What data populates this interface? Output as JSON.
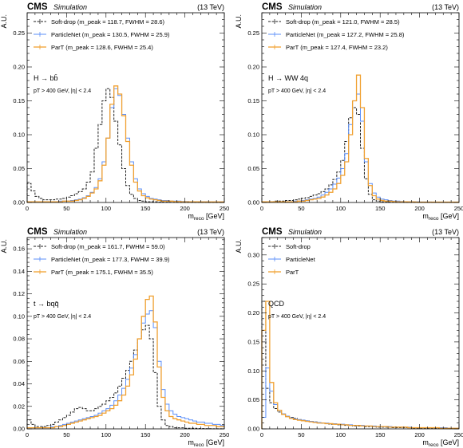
{
  "figure": {
    "experiment": "CMS",
    "simulation_label": "Simulation",
    "energy_label": "(13 TeV)",
    "y_axis_label": "A.U.",
    "x_axis_label": "m",
    "x_axis_label_sub": "reco",
    "x_axis_unit": "[GeV]",
    "colors": {
      "softdrop": "#222222",
      "particlenet": "#5b8ff9",
      "part": "#f0a030"
    }
  },
  "chart_data": [
    {
      "type": "line",
      "process_label": "H → bb̄",
      "cuts_label": "pT > 400 GeV, |η| < 2.4",
      "xlim": [
        0,
        250
      ],
      "ylim": [
        0,
        0.28
      ],
      "yticks": [
        0,
        0.05,
        0.1,
        0.15,
        0.2,
        0.25
      ],
      "yticklabels": [
        "0.00",
        "0.05",
        "0.10",
        "0.15",
        "0.20",
        "0.25"
      ],
      "xticks": [
        0,
        50,
        100,
        150,
        200,
        250
      ],
      "xticklabels": [
        "0",
        "50",
        "100",
        "150",
        "200",
        "250"
      ],
      "bin_width": 5,
      "series": [
        {
          "name": "Soft-drop",
          "legend_extra": "(m_peak = 118.7, FWHM = 28.6)",
          "values": [
            0.028,
            0.017,
            0.009,
            0.006,
            0.004,
            0.004,
            0.004,
            0.005,
            0.005,
            0.006,
            0.008,
            0.01,
            0.013,
            0.016,
            0.02,
            0.03,
            0.045,
            0.08,
            0.115,
            0.15,
            0.168,
            0.155,
            0.12,
            0.085,
            0.05,
            0.025,
            0.012,
            0.006,
            0.003,
            0.002,
            0.001,
            0.001,
            0.001,
            0.0005,
            0.0005,
            0.0005,
            0.0003,
            0.0003,
            0.0002,
            0.0002,
            0.0002,
            0.0001,
            0.0001,
            0.0001,
            0.0001,
            0.0001,
            0,
            0,
            0,
            0
          ]
        },
        {
          "name": "ParticleNet",
          "legend_extra": "(m_peak = 130.5, FWHM = 25.9)",
          "values": [
            0.001,
            0.001,
            0.001,
            0.001,
            0.001,
            0.001,
            0.001,
            0.001,
            0.002,
            0.002,
            0.002,
            0.003,
            0.004,
            0.005,
            0.007,
            0.01,
            0.015,
            0.022,
            0.035,
            0.06,
            0.095,
            0.14,
            0.168,
            0.158,
            0.13,
            0.095,
            0.06,
            0.035,
            0.02,
            0.013,
            0.009,
            0.006,
            0.005,
            0.004,
            0.003,
            0.003,
            0.002,
            0.002,
            0.002,
            0.0015,
            0.0015,
            0.001,
            0.001,
            0.001,
            0.001,
            0.001,
            0.0008,
            0.0008,
            0.0008,
            0.0008
          ]
        },
        {
          "name": "ParT",
          "legend_extra": "(m_peak = 128.6, FWHM = 25.4)",
          "values": [
            0.001,
            0.001,
            0.001,
            0.001,
            0.001,
            0.001,
            0.001,
            0.001,
            0.001,
            0.002,
            0.002,
            0.002,
            0.003,
            0.004,
            0.006,
            0.009,
            0.014,
            0.02,
            0.032,
            0.055,
            0.095,
            0.145,
            0.172,
            0.16,
            0.128,
            0.09,
            0.055,
            0.03,
            0.017,
            0.01,
            0.007,
            0.005,
            0.004,
            0.003,
            0.002,
            0.002,
            0.002,
            0.0015,
            0.0015,
            0.001,
            0.001,
            0.001,
            0.001,
            0.001,
            0.0008,
            0.0008,
            0.0008,
            0.0008,
            0.0008,
            0.0008
          ]
        }
      ]
    },
    {
      "type": "line",
      "process_label": "H → WW 4q",
      "cuts_label": "pT > 400 GeV, |η| < 2.4",
      "xlim": [
        0,
        250
      ],
      "ylim": [
        0,
        0.28
      ],
      "yticks": [
        0,
        0.05,
        0.1,
        0.15,
        0.2,
        0.25
      ],
      "yticklabels": [
        "0.00",
        "0.05",
        "0.10",
        "0.15",
        "0.20",
        "0.25"
      ],
      "xticks": [
        0,
        50,
        100,
        150,
        200,
        250
      ],
      "xticklabels": [
        "0",
        "50",
        "100",
        "150",
        "200",
        "250"
      ],
      "bin_width": 5,
      "series": [
        {
          "name": "Soft-drop",
          "legend_extra": "(m_peak = 121.0, FWHM = 28.5)",
          "values": [
            0.001,
            0.001,
            0.001,
            0.002,
            0.002,
            0.002,
            0.003,
            0.003,
            0.004,
            0.005,
            0.006,
            0.007,
            0.009,
            0.011,
            0.013,
            0.016,
            0.02,
            0.026,
            0.034,
            0.045,
            0.062,
            0.09,
            0.125,
            0.14,
            0.13,
            0.08,
            0.035,
            0.012,
            0.004,
            0.002,
            0.001,
            0.001,
            0.0005,
            0.0005,
            0.0003,
            0.0003,
            0.0002,
            0.0002,
            0.0001,
            0.0001,
            0.0001,
            0.0001,
            0,
            0,
            0,
            0,
            0,
            0,
            0,
            0
          ]
        },
        {
          "name": "ParticleNet",
          "legend_extra": "(m_peak = 127.2, FWHM = 25.8)",
          "values": [
            0.001,
            0.001,
            0.001,
            0.001,
            0.001,
            0.001,
            0.001,
            0.001,
            0.002,
            0.002,
            0.003,
            0.004,
            0.005,
            0.006,
            0.008,
            0.011,
            0.015,
            0.02,
            0.027,
            0.036,
            0.05,
            0.072,
            0.115,
            0.15,
            0.16,
            0.12,
            0.06,
            0.028,
            0.014,
            0.008,
            0.005,
            0.004,
            0.003,
            0.002,
            0.002,
            0.0015,
            0.001,
            0.001,
            0.001,
            0.001,
            0.0008,
            0.0008,
            0.0008,
            0.0005,
            0.0005,
            0.0005,
            0.0005,
            0.0005,
            0.0005,
            0.0005
          ]
        },
        {
          "name": "ParT",
          "legend_extra": "(m_peak = 127.4, FWHM = 23.2)",
          "values": [
            0.001,
            0.001,
            0.001,
            0.001,
            0.001,
            0.001,
            0.001,
            0.001,
            0.001,
            0.002,
            0.002,
            0.003,
            0.004,
            0.005,
            0.006,
            0.008,
            0.011,
            0.015,
            0.02,
            0.028,
            0.04,
            0.06,
            0.1,
            0.15,
            0.188,
            0.14,
            0.065,
            0.025,
            0.01,
            0.005,
            0.003,
            0.002,
            0.002,
            0.0015,
            0.001,
            0.001,
            0.001,
            0.0008,
            0.0008,
            0.0005,
            0.0005,
            0.0005,
            0.0005,
            0.0005,
            0.0005,
            0.0005,
            0.0005,
            0.0005,
            0.0005,
            0.0005
          ]
        }
      ]
    },
    {
      "type": "line",
      "process_label": "t → bqq̄",
      "cuts_label": "pT > 400 GeV, |η| < 2.4",
      "xlim": [
        0,
        250
      ],
      "ylim": [
        0,
        0.17
      ],
      "yticks": [
        0,
        0.02,
        0.04,
        0.06,
        0.08,
        0.1,
        0.12,
        0.14,
        0.16
      ],
      "yticklabels": [
        "0.00",
        "0.02",
        "0.04",
        "0.06",
        "0.08",
        "0.10",
        "0.12",
        "0.14",
        "0.16"
      ],
      "xticks": [
        0,
        50,
        100,
        150,
        200,
        250
      ],
      "xticklabels": [
        "0",
        "50",
        "100",
        "150",
        "200",
        "250"
      ],
      "bin_width": 5,
      "series": [
        {
          "name": "Soft-drop",
          "legend_extra": "(m_peak = 161.7, FWHM = 59.0)",
          "values": [
            0.008,
            0.004,
            0.002,
            0.002,
            0.002,
            0.003,
            0.004,
            0.006,
            0.008,
            0.01,
            0.012,
            0.015,
            0.018,
            0.019,
            0.018,
            0.016,
            0.016,
            0.018,
            0.02,
            0.022,
            0.025,
            0.028,
            0.032,
            0.038,
            0.045,
            0.052,
            0.06,
            0.07,
            0.08,
            0.088,
            0.092,
            0.08,
            0.05,
            0.02,
            0.008,
            0.003,
            0.002,
            0.001,
            0.001,
            0.001,
            0.0005,
            0.0005,
            0.0005,
            0.0003,
            0.0003,
            0.0002,
            0.0002,
            0.0001,
            0.0001,
            0.0001
          ]
        },
        {
          "name": "ParticleNet",
          "legend_extra": "(m_peak = 177.3, FWHM = 39.9)",
          "values": [
            0.001,
            0.001,
            0.001,
            0.001,
            0.001,
            0.001,
            0.002,
            0.002,
            0.003,
            0.004,
            0.005,
            0.006,
            0.007,
            0.008,
            0.009,
            0.01,
            0.011,
            0.012,
            0.014,
            0.016,
            0.018,
            0.021,
            0.025,
            0.03,
            0.036,
            0.044,
            0.054,
            0.066,
            0.08,
            0.094,
            0.102,
            0.105,
            0.09,
            0.06,
            0.035,
            0.022,
            0.016,
            0.013,
            0.011,
            0.01,
            0.009,
            0.008,
            0.007,
            0.006,
            0.006,
            0.005,
            0.005,
            0.004,
            0.004,
            0.003
          ]
        },
        {
          "name": "ParT",
          "legend_extra": "(m_peak = 175.1, FWHM = 35.5)",
          "values": [
            0.001,
            0.001,
            0.001,
            0.001,
            0.001,
            0.001,
            0.001,
            0.002,
            0.002,
            0.003,
            0.004,
            0.005,
            0.006,
            0.007,
            0.008,
            0.009,
            0.01,
            0.011,
            0.012,
            0.014,
            0.016,
            0.018,
            0.021,
            0.025,
            0.03,
            0.038,
            0.048,
            0.062,
            0.08,
            0.1,
            0.115,
            0.118,
            0.095,
            0.055,
            0.028,
            0.016,
            0.011,
            0.009,
            0.008,
            0.007,
            0.006,
            0.005,
            0.005,
            0.004,
            0.004,
            0.003,
            0.003,
            0.003,
            0.002,
            0.002
          ]
        }
      ]
    },
    {
      "type": "line",
      "process_label": "QCD",
      "cuts_label": "pT > 400 GeV, |η| < 2.4",
      "xlim": [
        0,
        250
      ],
      "ylim": [
        0,
        0.33
      ],
      "yticks": [
        0,
        0.05,
        0.1,
        0.15,
        0.2,
        0.25,
        0.3
      ],
      "yticklabels": [
        "0.00",
        "0.05",
        "0.10",
        "0.15",
        "0.20",
        "0.25",
        "0.30"
      ],
      "xticks": [
        0,
        50,
        100,
        150,
        200,
        250
      ],
      "xticklabels": [
        "0",
        "50",
        "100",
        "150",
        "200",
        "250"
      ],
      "bin_width": 5,
      "series": [
        {
          "name": "Soft-drop",
          "legend_extra": "",
          "values": [
            0.22,
            0.07,
            0.045,
            0.035,
            0.029,
            0.025,
            0.022,
            0.02,
            0.018,
            0.016,
            0.015,
            0.014,
            0.013,
            0.012,
            0.011,
            0.01,
            0.009,
            0.008,
            0.008,
            0.007,
            0.007,
            0.006,
            0.006,
            0.005,
            0.005,
            0.005,
            0.004,
            0.004,
            0.004,
            0.003,
            0.003,
            0.003,
            0.003,
            0.002,
            0.002,
            0.002,
            0.002,
            0.002,
            0.001,
            0.001,
            0.001,
            0.001,
            0.001,
            0.001,
            0.001,
            0.001,
            0.001,
            0.0005,
            0.0005,
            0.0005
          ]
        },
        {
          "name": "ParticleNet",
          "legend_extra": "",
          "values": [
            0.02,
            0.105,
            0.065,
            0.042,
            0.032,
            0.026,
            0.022,
            0.019,
            0.017,
            0.016,
            0.015,
            0.014,
            0.013,
            0.012,
            0.011,
            0.01,
            0.01,
            0.009,
            0.009,
            0.008,
            0.008,
            0.007,
            0.007,
            0.006,
            0.006,
            0.006,
            0.005,
            0.005,
            0.005,
            0.004,
            0.004,
            0.004,
            0.004,
            0.003,
            0.003,
            0.003,
            0.003,
            0.003,
            0.002,
            0.002,
            0.002,
            0.002,
            0.002,
            0.002,
            0.002,
            0.002,
            0.002,
            0.001,
            0.001,
            0.001
          ]
        },
        {
          "name": "ParT",
          "legend_extra": "",
          "values": [
            0.17,
            0.22,
            0.08,
            0.045,
            0.032,
            0.025,
            0.021,
            0.018,
            0.016,
            0.015,
            0.014,
            0.013,
            0.012,
            0.011,
            0.01,
            0.01,
            0.009,
            0.009,
            0.008,
            0.008,
            0.007,
            0.007,
            0.006,
            0.006,
            0.006,
            0.005,
            0.005,
            0.005,
            0.004,
            0.004,
            0.004,
            0.004,
            0.003,
            0.003,
            0.003,
            0.003,
            0.003,
            0.002,
            0.002,
            0.002,
            0.002,
            0.002,
            0.002,
            0.002,
            0.002,
            0.001,
            0.001,
            0.001,
            0.001,
            0.001
          ]
        }
      ]
    }
  ]
}
